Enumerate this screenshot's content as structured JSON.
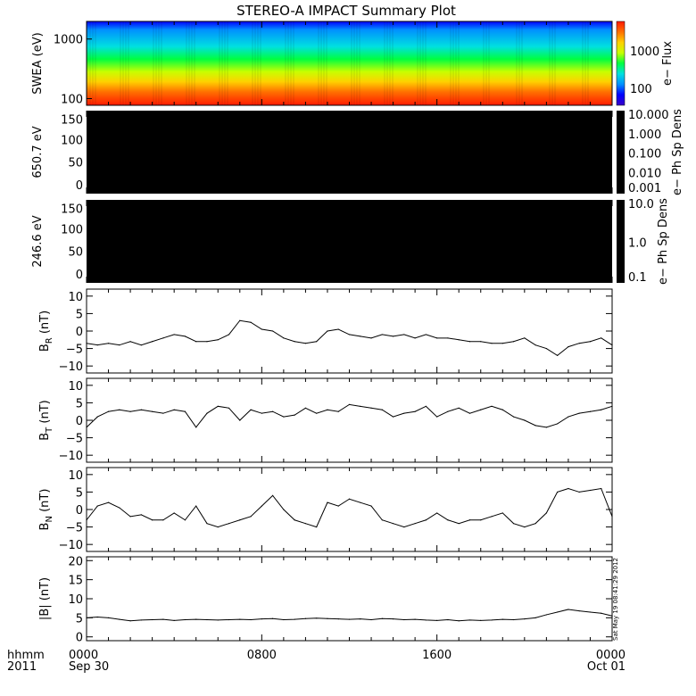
{
  "title": "STEREO-A IMPACT Summary Plot",
  "footer": {
    "row_label_top": "hhmm",
    "row_label_bottom": "2011",
    "x_ticks": [
      {
        "top": "0000",
        "bottom": "Sep 30",
        "hour": 0
      },
      {
        "top": "0800",
        "bottom": "",
        "hour": 8
      },
      {
        "top": "1600",
        "bottom": "",
        "hour": 16
      },
      {
        "top": "0000",
        "bottom": "Oct 01",
        "hour": 24
      }
    ],
    "timestamp": "Sat May 19 08:41:29 2012"
  },
  "colors": {
    "line": "#000000",
    "background": "#ffffff",
    "panel_fill_dark": "#000000"
  },
  "chart_data": [
    {
      "type": "heatmap",
      "ylabel": "SWEA (eV)",
      "y_scale": "log",
      "ylim": [
        90,
        2200
      ],
      "y_ticks": [
        "1000",
        "100"
      ],
      "colorbar": {
        "label": "e− Flux",
        "scale": "log",
        "ticks": [
          "1000",
          "100"
        ],
        "colors": [
          "#3a00c8",
          "#0000ff",
          "#0090ff",
          "#00e0e0",
          "#00ff40",
          "#c8ff00",
          "#ffd000",
          "#ff7000",
          "#ff1a00"
        ]
      }
    },
    {
      "type": "heatmap",
      "ylabel": "650.7 eV",
      "ylim": [
        0,
        180
      ],
      "y_ticks": [
        "150",
        "100",
        "50",
        "0"
      ],
      "colorbar": {
        "label": "e− Ph Sp Dens",
        "scale": "log",
        "ticks": [
          "10.000",
          "1.000",
          "0.100",
          "0.010",
          "0.001"
        ]
      }
    },
    {
      "type": "heatmap",
      "ylabel": "246.6 eV",
      "ylim": [
        0,
        180
      ],
      "y_ticks": [
        "150",
        "100",
        "50",
        "0"
      ],
      "colorbar": {
        "label": "e− Ph Sp Dens",
        "scale": "log",
        "ticks": [
          "10.0",
          "1.0",
          "0.1"
        ]
      }
    },
    {
      "type": "line",
      "ylabel_main": "B",
      "ylabel_sub": "R",
      "ylabel_unit": " (nT)",
      "ylim": [
        -12,
        12
      ],
      "y_ticks": [
        "10",
        "5",
        "0",
        "−5",
        "−10"
      ],
      "x": [
        0,
        0.5,
        1,
        1.5,
        2,
        2.5,
        3,
        3.5,
        4,
        4.5,
        5,
        5.5,
        6,
        6.5,
        7,
        7.5,
        8,
        8.5,
        9,
        9.5,
        10,
        10.5,
        11,
        11.5,
        12,
        12.5,
        13,
        13.5,
        14,
        14.5,
        15,
        15.5,
        16,
        16.5,
        17,
        17.5,
        18,
        18.5,
        19,
        19.5,
        20,
        20.5,
        21,
        21.5,
        22,
        22.5,
        23,
        23.5,
        24
      ],
      "y": [
        -3.5,
        -4,
        -3.5,
        -4,
        -3,
        -4,
        -3,
        -2,
        -1,
        -1.5,
        -3,
        -3,
        -2.5,
        -1,
        3,
        2.5,
        0.5,
        0,
        -2,
        -3,
        -3.5,
        -3,
        0,
        0.5,
        -1,
        -1.5,
        -2,
        -1,
        -1.5,
        -1,
        -2,
        -1,
        -2,
        -2,
        -2.5,
        -3,
        -3,
        -3.5,
        -3.5,
        -3,
        -2,
        -4,
        -5,
        -7,
        -4.5,
        -3.5,
        -3,
        -2,
        -4
      ]
    },
    {
      "type": "line",
      "ylabel_main": "B",
      "ylabel_sub": "T",
      "ylabel_unit": " (nT)",
      "ylim": [
        -12,
        12
      ],
      "y_ticks": [
        "10",
        "5",
        "0",
        "−5",
        "−10"
      ],
      "x": [
        0,
        0.5,
        1,
        1.5,
        2,
        2.5,
        3,
        3.5,
        4,
        4.5,
        5,
        5.5,
        6,
        6.5,
        7,
        7.5,
        8,
        8.5,
        9,
        9.5,
        10,
        10.5,
        11,
        11.5,
        12,
        12.5,
        13,
        13.5,
        14,
        14.5,
        15,
        15.5,
        16,
        16.5,
        17,
        17.5,
        18,
        18.5,
        19,
        19.5,
        20,
        20.5,
        21,
        21.5,
        22,
        22.5,
        23,
        23.5,
        24
      ],
      "y": [
        -2,
        1,
        2.5,
        3,
        2.5,
        3,
        2.5,
        2,
        3,
        2.5,
        -2,
        2,
        4,
        3.5,
        0,
        3,
        2,
        2.5,
        1,
        1.5,
        3.5,
        2,
        3,
        2.5,
        4.5,
        4,
        3.5,
        3,
        1,
        2,
        2.5,
        4,
        1,
        2.5,
        3.5,
        2,
        3,
        4,
        3,
        1,
        0,
        -1.5,
        -2,
        -1,
        1,
        2,
        2.5,
        3,
        4
      ]
    },
    {
      "type": "line",
      "ylabel_main": "B",
      "ylabel_sub": "N",
      "ylabel_unit": " (nT)",
      "ylim": [
        -12,
        12
      ],
      "y_ticks": [
        "10",
        "5",
        "0",
        "−5",
        "−10"
      ],
      "x": [
        0,
        0.5,
        1,
        1.5,
        2,
        2.5,
        3,
        3.5,
        4,
        4.5,
        5,
        5.5,
        6,
        6.5,
        7,
        7.5,
        8,
        8.5,
        9,
        9.5,
        10,
        10.5,
        11,
        11.5,
        12,
        12.5,
        13,
        13.5,
        14,
        14.5,
        15,
        15.5,
        16,
        16.5,
        17,
        17.5,
        18,
        18.5,
        19,
        19.5,
        20,
        20.5,
        21,
        21.5,
        22,
        22.5,
        23,
        23.5,
        24
      ],
      "y": [
        -3,
        1,
        2,
        0.5,
        -2,
        -1.5,
        -3,
        -3,
        -1,
        -3,
        1,
        -4,
        -5,
        -4,
        -3,
        -2,
        1,
        4,
        0,
        -3,
        -4,
        -5,
        2,
        1,
        3,
        2,
        1,
        -3,
        -4,
        -5,
        -4,
        -3,
        -1,
        -3,
        -4,
        -3,
        -3,
        -2,
        -1,
        -4,
        -5,
        -4,
        -1,
        5,
        6,
        5,
        5.5,
        6,
        -2
      ]
    },
    {
      "type": "line",
      "ylabel_main": "|B| (nT)",
      "ylim": [
        -1,
        21
      ],
      "y_ticks": [
        "20",
        "15",
        "10",
        "5",
        "0"
      ],
      "x": [
        0,
        0.5,
        1,
        1.5,
        2,
        2.5,
        3,
        3.5,
        4,
        4.5,
        5,
        5.5,
        6,
        6.5,
        7,
        7.5,
        8,
        8.5,
        9,
        9.5,
        10,
        10.5,
        11,
        11.5,
        12,
        12.5,
        13,
        13.5,
        14,
        14.5,
        15,
        15.5,
        16,
        16.5,
        17,
        17.5,
        18,
        18.5,
        19,
        19.5,
        20,
        20.5,
        21,
        21.5,
        22,
        22.5,
        23,
        23.5,
        24
      ],
      "y": [
        5,
        5.2,
        5,
        4.6,
        4.2,
        4.4,
        4.5,
        4.6,
        4.3,
        4.5,
        4.6,
        4.5,
        4.4,
        4.5,
        4.6,
        4.5,
        4.7,
        4.8,
        4.5,
        4.6,
        4.8,
        4.9,
        4.8,
        4.7,
        4.6,
        4.7,
        4.5,
        4.8,
        4.7,
        4.5,
        4.6,
        4.4,
        4.3,
        4.5,
        4.2,
        4.4,
        4.3,
        4.4,
        4.6,
        4.5,
        4.7,
        5,
        5.8,
        6.5,
        7.2,
        6.8,
        6.5,
        6.2,
        5.5
      ]
    }
  ]
}
